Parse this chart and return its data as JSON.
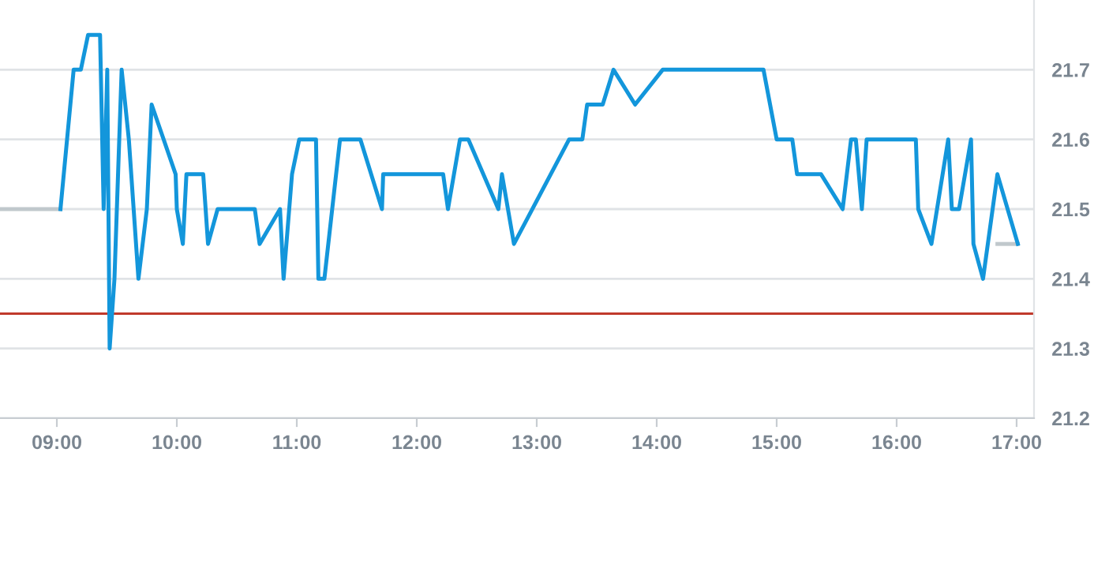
{
  "chart_data": {
    "type": "line",
    "xlim": [
      8.526,
      17.145
    ],
    "xticks": [
      {
        "value": 9,
        "label": "09:00"
      },
      {
        "value": 10,
        "label": "10:00"
      },
      {
        "value": 11,
        "label": "11:00"
      },
      {
        "value": 12,
        "label": "12:00"
      },
      {
        "value": 13,
        "label": "13:00"
      },
      {
        "value": 14,
        "label": "14:00"
      },
      {
        "value": 15,
        "label": "15:00"
      },
      {
        "value": 16,
        "label": "16:00"
      },
      {
        "value": 17,
        "label": "17:00"
      }
    ],
    "ylim": [
      21.2,
      21.8
    ],
    "yticks": [
      21.2,
      21.3,
      21.4,
      21.5,
      21.6,
      21.7
    ],
    "grid": "y",
    "legend": false,
    "marker": "none",
    "line_style": "solid",
    "ref_lines": [
      {
        "axis": "y",
        "value": 21.35,
        "color": "#c0392b"
      }
    ],
    "series": [
      {
        "color": "#c0c8cc",
        "x": [
          8.526,
          9.03
        ],
        "values": [
          21.5,
          21.5
        ]
      },
      {
        "color": "#c0c8cc",
        "x": [
          16.84,
          17.01
        ],
        "values": [
          21.45,
          21.45
        ]
      },
      {
        "color": "#1396db",
        "x": [
          9.03,
          9.14,
          9.2,
          9.26,
          9.36,
          9.39,
          9.42,
          9.44,
          9.48,
          9.54,
          9.6,
          9.68,
          9.75,
          9.79,
          9.99,
          10.0,
          10.05,
          10.08,
          10.22,
          10.26,
          10.34,
          10.65,
          10.69,
          10.86,
          10.89,
          10.96,
          11.02,
          11.16,
          11.18,
          11.23,
          11.36,
          11.53,
          11.71,
          11.72,
          12.22,
          12.26,
          12.36,
          12.43,
          12.68,
          12.71,
          12.81,
          13.27,
          13.38,
          13.42,
          13.55,
          13.64,
          13.82,
          14.05,
          14.89,
          15.0,
          15.13,
          15.17,
          15.37,
          15.55,
          15.62,
          15.66,
          15.71,
          15.75,
          16.16,
          16.18,
          16.29,
          16.43,
          16.46,
          16.52,
          16.62,
          16.64,
          16.72,
          16.84,
          17.01
        ],
        "values": [
          21.5,
          21.7,
          21.7,
          21.75,
          21.75,
          21.5,
          21.7,
          21.3,
          21.4,
          21.7,
          21.6,
          21.4,
          21.5,
          21.65,
          21.55,
          21.5,
          21.45,
          21.55,
          21.55,
          21.45,
          21.5,
          21.5,
          21.45,
          21.5,
          21.4,
          21.55,
          21.6,
          21.6,
          21.4,
          21.4,
          21.6,
          21.6,
          21.5,
          21.55,
          21.55,
          21.5,
          21.6,
          21.6,
          21.5,
          21.55,
          21.45,
          21.6,
          21.6,
          21.65,
          21.65,
          21.7,
          21.65,
          21.7,
          21.7,
          21.6,
          21.6,
          21.55,
          21.55,
          21.5,
          21.6,
          21.6,
          21.5,
          21.6,
          21.6,
          21.5,
          21.45,
          21.6,
          21.5,
          21.5,
          21.6,
          21.45,
          21.4,
          21.55,
          21.45
        ]
      }
    ]
  }
}
